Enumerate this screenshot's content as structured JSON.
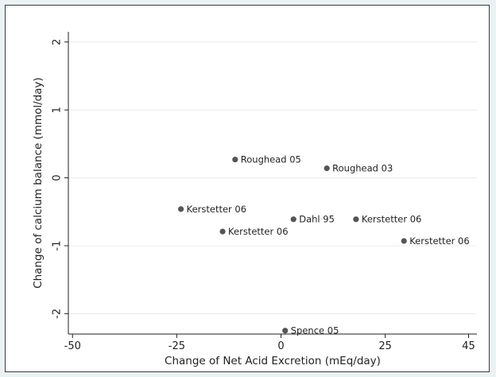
{
  "chart_data": {
    "type": "scatter",
    "xlabel": "Change of Net Acid Excretion (mEq/day)",
    "ylabel": "Change of calcium balance (mmol/day)",
    "xlim": [
      -51,
      47
    ],
    "ylim": [
      -2.3,
      2.15
    ],
    "xticks": [
      -50,
      -25,
      0,
      25,
      45
    ],
    "xtick_labels": [
      "-50",
      "-25",
      "0",
      "25",
      "45"
    ],
    "yticks": [
      2,
      1,
      0,
      -1,
      -2
    ],
    "ytick_labels": [
      "2",
      "1",
      "0",
      "-1",
      "-2"
    ],
    "grid": true,
    "points": [
      {
        "label": "Roughead 05",
        "x": -11,
        "y": 0.27
      },
      {
        "label": "Roughead 03",
        "x": 11,
        "y": 0.14
      },
      {
        "label": "Kerstetter 06",
        "x": -24,
        "y": -0.46
      },
      {
        "label": "Dahl 95",
        "x": 3,
        "y": -0.61
      },
      {
        "label": "Kerstetter 06",
        "x": 18,
        "y": -0.61
      },
      {
        "label": "Kerstetter 06",
        "x": -14,
        "y": -0.79
      },
      {
        "label": "Kerstetter 06",
        "x": 29.5,
        "y": -0.93
      },
      {
        "label": "Spence 05",
        "x": 1,
        "y": -2.25
      }
    ],
    "colors": {
      "point": "#555555",
      "grid": "#e6ecee",
      "axis": "#222222"
    }
  }
}
